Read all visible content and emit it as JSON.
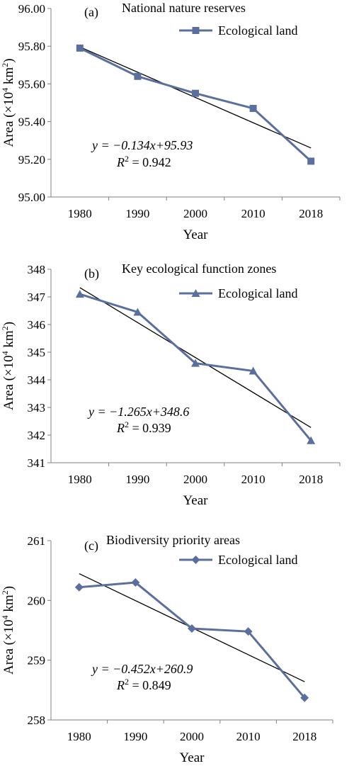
{
  "figure": {
    "series_color": "#5b6f9e",
    "trend_color": "#000000",
    "axis_color": "#808080"
  },
  "chart_data": [
    {
      "type": "line",
      "panel_label": "(a)",
      "title": "National nature reserves",
      "categories": [
        "1980",
        "1990",
        "2000",
        "2010",
        "2018"
      ],
      "series": [
        {
          "name": "Ecological land",
          "marker": "square",
          "values": [
            95.79,
            95.64,
            95.55,
            95.47,
            95.19
          ]
        }
      ],
      "trendline": {
        "slope": -0.134,
        "intercept": 95.93
      },
      "equation": "y = −0.134x+95.93",
      "r2_label": "R",
      "r2_value": " = 0.942",
      "xlabel": "Year",
      "ylabel": "Area (×10",
      "ylabel_unit": "km",
      "ylim": [
        95.0,
        96.0
      ],
      "yticks": [
        "95.00",
        "95.20",
        "95.40",
        "95.60",
        "95.80",
        "96.00"
      ]
    },
    {
      "type": "line",
      "panel_label": "(b)",
      "title": "Key ecological function zones",
      "categories": [
        "1980",
        "1990",
        "2000",
        "2010",
        "2018"
      ],
      "series": [
        {
          "name": "Ecological land",
          "marker": "triangle",
          "values": [
            347.1,
            346.45,
            344.6,
            344.32,
            341.8
          ]
        }
      ],
      "trendline": {
        "slope": -1.265,
        "intercept": 348.6
      },
      "equation": "y = −1.265x+348.6",
      "r2_label": "R",
      "r2_value": " =  0.939",
      "xlabel": "Year",
      "ylabel": "Area (×10",
      "ylabel_unit": "km",
      "ylim": [
        341,
        348
      ],
      "yticks": [
        "341",
        "342",
        "343",
        "344",
        "345",
        "346",
        "347",
        "348"
      ]
    },
    {
      "type": "line",
      "panel_label": "(c)",
      "title": "Biodiversity priority areas",
      "categories": [
        "1980",
        "1990",
        "2000",
        "2010",
        "2018"
      ],
      "series": [
        {
          "name": "Ecological land",
          "marker": "diamond",
          "values": [
            260.22,
            260.3,
            259.53,
            259.48,
            258.37
          ]
        }
      ],
      "trendline": {
        "slope": -0.452,
        "intercept": 260.9
      },
      "equation": "y = −0.452x+260.9",
      "r2_label": "R",
      "r2_value": " = 0.849",
      "xlabel": "Year",
      "ylabel": "Area (×10",
      "ylabel_unit": "km",
      "ylim": [
        258,
        261
      ],
      "yticks": [
        "258",
        "259",
        "260",
        "261"
      ]
    }
  ]
}
